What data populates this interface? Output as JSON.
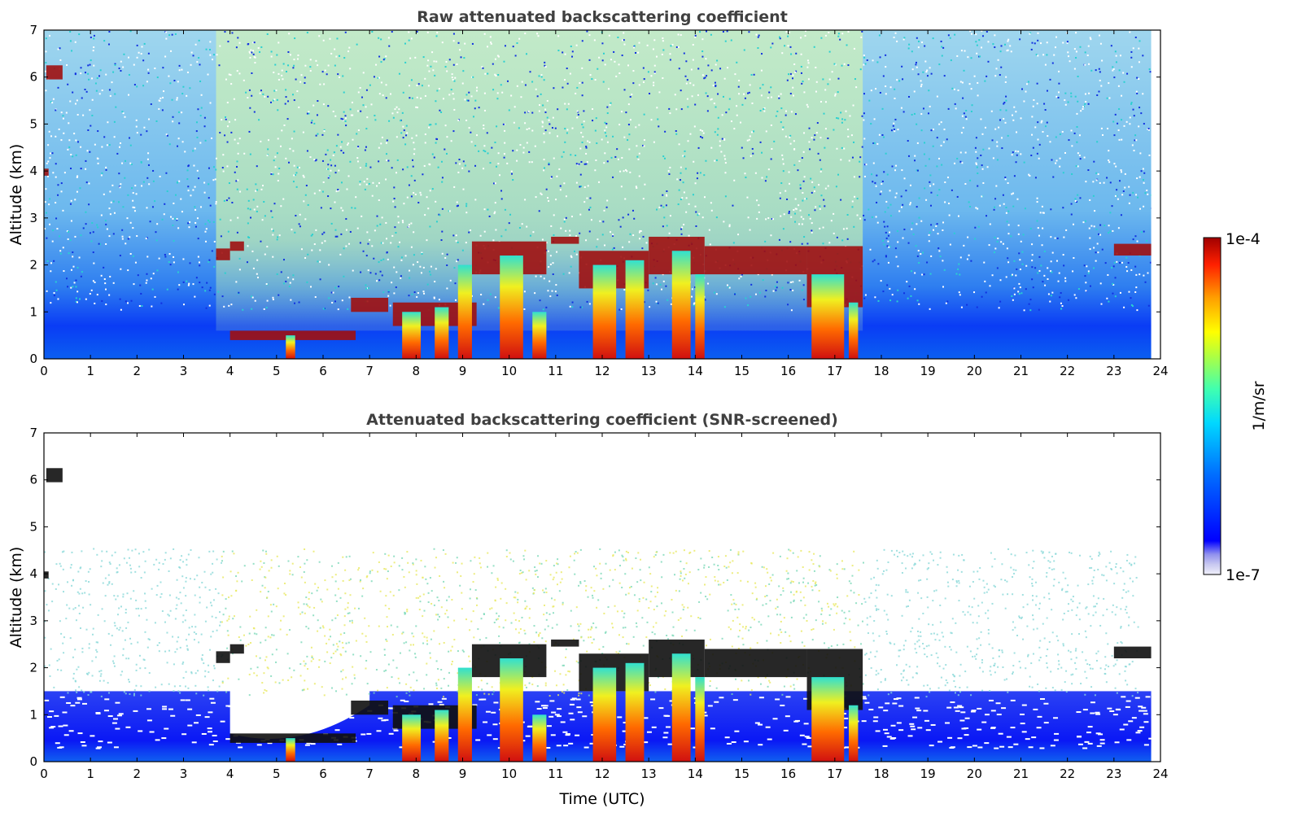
{
  "chart_data": [
    {
      "type": "heatmap",
      "title": "Raw attenuated backscattering coefficient",
      "xlabel": "",
      "ylabel": "Altitude (km)",
      "xlim": [
        0,
        24
      ],
      "ylim": [
        0,
        7
      ],
      "xticks": [
        "0",
        "1",
        "2",
        "3",
        "4",
        "5",
        "6",
        "7",
        "8",
        "9",
        "10",
        "11",
        "12",
        "13",
        "14",
        "15",
        "16",
        "17",
        "18",
        "19",
        "20",
        "21",
        "22",
        "23",
        "24"
      ],
      "yticks": [
        "0",
        "1",
        "2",
        "3",
        "4",
        "5",
        "6",
        "7"
      ],
      "screened": false,
      "features": [
        {
          "kind": "cloud_layer",
          "x": [
            0.05,
            0.4
          ],
          "y": [
            5.95,
            6.25
          ]
        },
        {
          "kind": "cloud_layer",
          "x": [
            0.0,
            0.1
          ],
          "y": [
            3.9,
            4.05
          ]
        },
        {
          "kind": "cloud_layer",
          "x": [
            3.7,
            4.0
          ],
          "y": [
            2.1,
            2.35
          ]
        },
        {
          "kind": "cloud_layer",
          "x": [
            4.0,
            4.3
          ],
          "y": [
            2.3,
            2.5
          ]
        },
        {
          "kind": "cloud_layer",
          "x": [
            4.0,
            6.7
          ],
          "y": [
            0.4,
            0.6
          ]
        },
        {
          "kind": "cloud_layer",
          "x": [
            6.6,
            7.4
          ],
          "y": [
            1.0,
            1.3
          ]
        },
        {
          "kind": "cloud_layer",
          "x": [
            7.5,
            9.3
          ],
          "y": [
            0.7,
            1.2
          ]
        },
        {
          "kind": "cloud_layer",
          "x": [
            9.2,
            10.8
          ],
          "y": [
            1.8,
            2.5
          ]
        },
        {
          "kind": "cloud_layer",
          "x": [
            10.9,
            11.5
          ],
          "y": [
            2.45,
            2.6
          ]
        },
        {
          "kind": "cloud_layer",
          "x": [
            11.5,
            13.0
          ],
          "y": [
            1.5,
            2.3
          ]
        },
        {
          "kind": "cloud_layer",
          "x": [
            13.0,
            14.2
          ],
          "y": [
            1.8,
            2.6
          ]
        },
        {
          "kind": "cloud_layer",
          "x": [
            14.2,
            16.4
          ],
          "y": [
            1.8,
            2.4
          ]
        },
        {
          "kind": "cloud_layer",
          "x": [
            16.4,
            17.6
          ],
          "y": [
            1.1,
            2.4
          ]
        },
        {
          "kind": "cloud_layer",
          "x": [
            23.0,
            23.8
          ],
          "y": [
            2.2,
            2.45
          ]
        },
        {
          "kind": "precip_column",
          "x": [
            5.2,
            5.4
          ],
          "y": [
            0,
            0.5
          ]
        },
        {
          "kind": "precip_column",
          "x": [
            7.7,
            8.1
          ],
          "y": [
            0,
            1.0
          ]
        },
        {
          "kind": "precip_column",
          "x": [
            8.4,
            8.7
          ],
          "y": [
            0,
            1.1
          ]
        },
        {
          "kind": "precip_column",
          "x": [
            8.9,
            9.2
          ],
          "y": [
            0,
            2.0
          ]
        },
        {
          "kind": "precip_column",
          "x": [
            9.8,
            10.3
          ],
          "y": [
            0,
            2.2
          ]
        },
        {
          "kind": "precip_column",
          "x": [
            10.5,
            10.8
          ],
          "y": [
            0,
            1.0
          ]
        },
        {
          "kind": "precip_column",
          "x": [
            11.8,
            12.3
          ],
          "y": [
            0,
            2.0
          ]
        },
        {
          "kind": "precip_column",
          "x": [
            12.5,
            12.9
          ],
          "y": [
            0,
            2.1
          ]
        },
        {
          "kind": "precip_column",
          "x": [
            13.5,
            13.9
          ],
          "y": [
            0,
            2.3
          ]
        },
        {
          "kind": "precip_column",
          "x": [
            14.0,
            14.2
          ],
          "y": [
            0,
            1.8
          ]
        },
        {
          "kind": "precip_column",
          "x": [
            16.5,
            17.2
          ],
          "y": [
            0,
            1.8
          ]
        },
        {
          "kind": "precip_column",
          "x": [
            17.3,
            17.5
          ],
          "y": [
            0,
            1.2
          ]
        }
      ]
    },
    {
      "type": "heatmap",
      "title": "Attenuated backscattering coefficient (SNR-screened)",
      "xlabel": "Time (UTC)",
      "ylabel": "Altitude (km)",
      "xlim": [
        0,
        24
      ],
      "ylim": [
        0,
        7
      ],
      "xticks": [
        "0",
        "1",
        "2",
        "3",
        "4",
        "5",
        "6",
        "7",
        "8",
        "9",
        "10",
        "11",
        "12",
        "13",
        "14",
        "15",
        "16",
        "17",
        "18",
        "19",
        "20",
        "21",
        "22",
        "23",
        "24"
      ],
      "yticks": [
        "0",
        "1",
        "2",
        "3",
        "4",
        "5",
        "6",
        "7"
      ],
      "screened": true,
      "features": "same as raw panel, with low-SNR noise removed above ~1.5 km and saturated cores shown in black"
    }
  ],
  "colorbar": {
    "label": "1/m/sr",
    "max_label": "1e-4",
    "min_label": "1e-7",
    "scale": "log",
    "colormap": "jet",
    "colors": [
      "#e6e6f5",
      "#b3b3f0",
      "#0000ff",
      "#0060ff",
      "#00c0ff",
      "#00ffc0",
      "#80ff40",
      "#ffff00",
      "#ffa000",
      "#ff3000",
      "#a00000"
    ]
  }
}
